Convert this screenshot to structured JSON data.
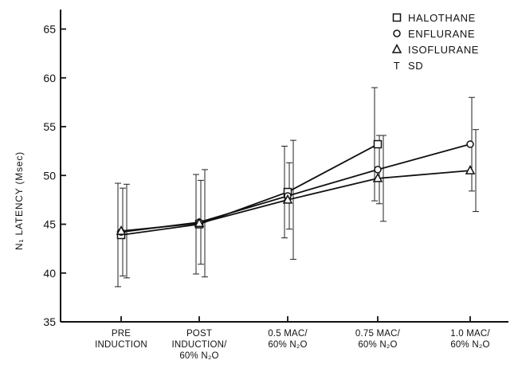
{
  "chart_data": {
    "type": "line",
    "title": "",
    "xlabel": "",
    "ylabel": "N₁ LATENCY  (Msec)",
    "ylim": [
      35,
      67
    ],
    "yticks": [
      35,
      40,
      45,
      50,
      55,
      60,
      65
    ],
    "categories": [
      [
        "PRE",
        "INDUCTION"
      ],
      [
        "POST",
        "INDUCTION/",
        "60% N₂O"
      ],
      [
        "0.5 MAC/",
        "60% N₂O"
      ],
      [
        "0.75 MAC/",
        "60% N₂O"
      ],
      [
        "1.0 MAC/",
        "60% N₂O"
      ]
    ],
    "series": [
      {
        "name": "HALOTHANE",
        "marker": "square",
        "values": [
          43.9,
          45.0,
          48.3,
          53.2,
          null
        ],
        "sd": [
          5.3,
          5.1,
          4.7,
          5.8,
          null
        ]
      },
      {
        "name": "ENFLURANE",
        "marker": "circle",
        "values": [
          44.2,
          45.2,
          47.9,
          50.6,
          53.2
        ],
        "sd": [
          4.5,
          4.3,
          3.4,
          3.5,
          4.8
        ]
      },
      {
        "name": "ISOFLURANE",
        "marker": "triangle",
        "values": [
          44.3,
          45.1,
          47.5,
          49.7,
          50.5
        ],
        "sd": [
          4.8,
          5.5,
          6.1,
          4.4,
          4.2
        ]
      }
    ],
    "legend": {
      "position": "top-right",
      "entries": [
        {
          "symbol": "square",
          "label": "HALOTHANE"
        },
        {
          "symbol": "circle",
          "label": "ENFLURANE"
        },
        {
          "symbol": "triangle",
          "label": "ISOFLURANE"
        },
        {
          "symbol": "T",
          "label": "SD"
        }
      ]
    },
    "grid": false
  }
}
